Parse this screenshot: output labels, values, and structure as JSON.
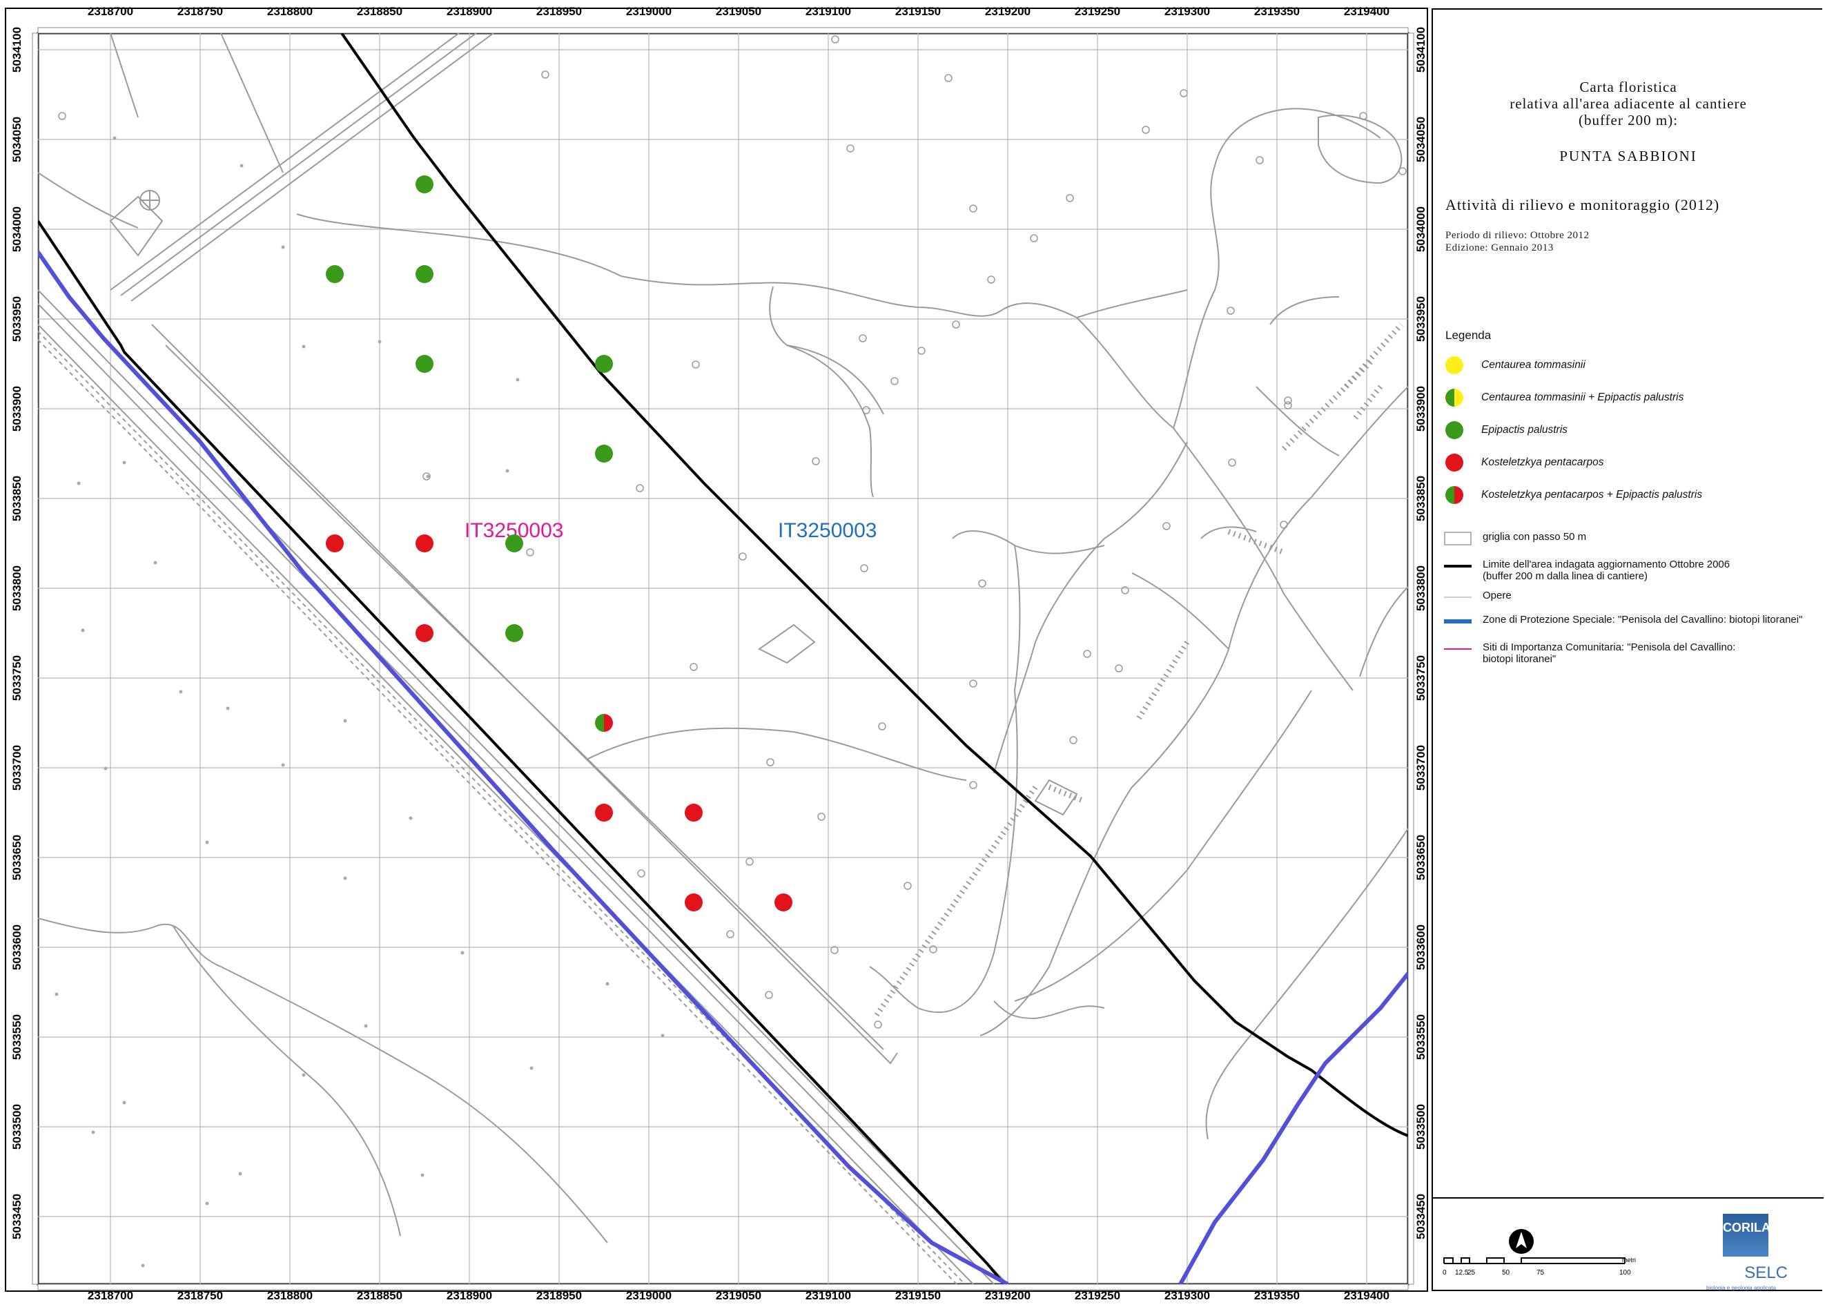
{
  "map": {
    "x_ticks": [
      "2318700",
      "2318750",
      "2318800",
      "2318850",
      "2318900",
      "2318950",
      "2319000",
      "2319050",
      "2319100",
      "2319150",
      "2319200",
      "2319250",
      "2319300",
      "2319350",
      "2319400"
    ],
    "y_ticks": [
      "5034100",
      "5034050",
      "5034000",
      "5033950",
      "5033900",
      "5033850",
      "5033800",
      "5033750",
      "5033700",
      "5033650",
      "5033600",
      "5033550",
      "5033500",
      "5033450"
    ],
    "labels": {
      "sic": "IT3250003",
      "zps": "IT3250003"
    },
    "points": [
      {
        "x": 2318875,
        "y": 5034025,
        "species": "epipactis"
      },
      {
        "x": 2318825,
        "y": 5033975,
        "species": "epipactis"
      },
      {
        "x": 2318875,
        "y": 5033975,
        "species": "epipactis"
      },
      {
        "x": 2318875,
        "y": 5033925,
        "species": "epipactis"
      },
      {
        "x": 2318975,
        "y": 5033925,
        "species": "epipactis"
      },
      {
        "x": 2318975,
        "y": 5033875,
        "species": "epipactis"
      },
      {
        "x": 2318825,
        "y": 5033825,
        "species": "kosteletzkya"
      },
      {
        "x": 2318875,
        "y": 5033825,
        "species": "kosteletzkya"
      },
      {
        "x": 2318925,
        "y": 5033825,
        "species": "epipactis"
      },
      {
        "x": 2318875,
        "y": 5033775,
        "species": "kosteletzkya"
      },
      {
        "x": 2318925,
        "y": 5033775,
        "species": "epipactis"
      },
      {
        "x": 2318975,
        "y": 5033725,
        "species": "kosteletzkya_epipactis"
      },
      {
        "x": 2318975,
        "y": 5033675,
        "species": "kosteletzkya"
      },
      {
        "x": 2319025,
        "y": 5033675,
        "species": "kosteletzkya"
      },
      {
        "x": 2319025,
        "y": 5033625,
        "species": "kosteletzkya"
      },
      {
        "x": 2319075,
        "y": 5033625,
        "species": "kosteletzkya"
      }
    ],
    "colors": {
      "epipactis": "#3a9a1a",
      "kosteletzkya": "#e0141a",
      "centaurea": "#ffee1a",
      "zps_line": "#5050d8",
      "sic_label": "#e0189a",
      "zps_label": "#1e6ec8",
      "boundary": "#000000",
      "grid": "#b8b8b8",
      "opere": "#9a9a9a"
    }
  },
  "panel": {
    "title_lines": [
      "Carta floristica",
      "relativa all'area adiacente al cantiere",
      "(buffer 200 m):"
    ],
    "site": "PUNTA SABBIONI",
    "activity": "Attività di rilievo e monitoraggio (2012)",
    "period": "Periodo di rilievo: Ottobre 2012",
    "edition": "Edizione: Gennaio 2013",
    "legend_title": "Legenda",
    "legend_species": [
      {
        "label": "Centaurea tommasinii",
        "symbol": "centaurea"
      },
      {
        "label": "Centaurea tommasinii + Epipactis palustris",
        "symbol": "centaurea_epipactis"
      },
      {
        "label": "Epipactis palustris",
        "symbol": "epipactis"
      },
      {
        "label": "Kosteletzkya pentacarpos",
        "symbol": "kosteletzkya"
      },
      {
        "label": "Kosteletzkya pentacarpos + Epipactis palustris",
        "symbol": "kosteletzkya_epipactis"
      }
    ],
    "legend_grid": "griglia con passo 50 m",
    "legend_boundary": [
      "Limite dell'area indagata aggiornamento Ottobre 2006",
      "(buffer 200 m dalla linea di cantiere)"
    ],
    "legend_opere": "Opere",
    "legend_zps": "Zone di Protezione Speciale: \"Penisola del Cavallino: biotopi litoranei\"",
    "legend_sic": [
      "Siti di Importanza Comunitaria: \"Penisola del Cavallino:",
      "biotopi litoranei\""
    ],
    "scale_ticks": [
      "0",
      "12.5",
      "25",
      "50",
      "75",
      "100"
    ],
    "scale_unit": "metri",
    "logo_corila": "CORILA",
    "logo_selc": "SELC",
    "logo_selc_sub": "biologia e geologia applicata"
  }
}
